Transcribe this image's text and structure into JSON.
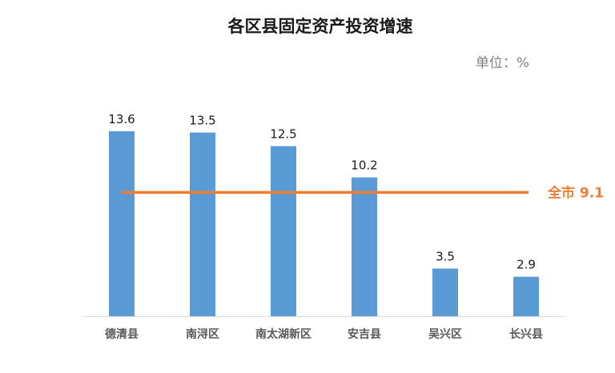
{
  "chart_data": {
    "type": "bar",
    "title": "各区县固定资产投资增速",
    "unit_label": "单位：%",
    "categories": [
      "德清县",
      "南浔区",
      "南太湖新区",
      "安吉县",
      "吴兴区",
      "长兴县"
    ],
    "values": [
      13.6,
      13.5,
      12.5,
      10.2,
      3.5,
      2.9
    ],
    "value_labels": [
      "13.6",
      "13.5",
      "12.5",
      "10.2",
      "3.5",
      "2.9"
    ],
    "reference_line": {
      "label": "全市 9.1",
      "value": 9.1
    },
    "ylim": [
      0,
      16.3
    ],
    "grid": false,
    "legend": "none",
    "colors": {
      "bar": "#5b9bd5",
      "reference_line": "#ed7d31",
      "axis": "#d9d9d9"
    }
  }
}
